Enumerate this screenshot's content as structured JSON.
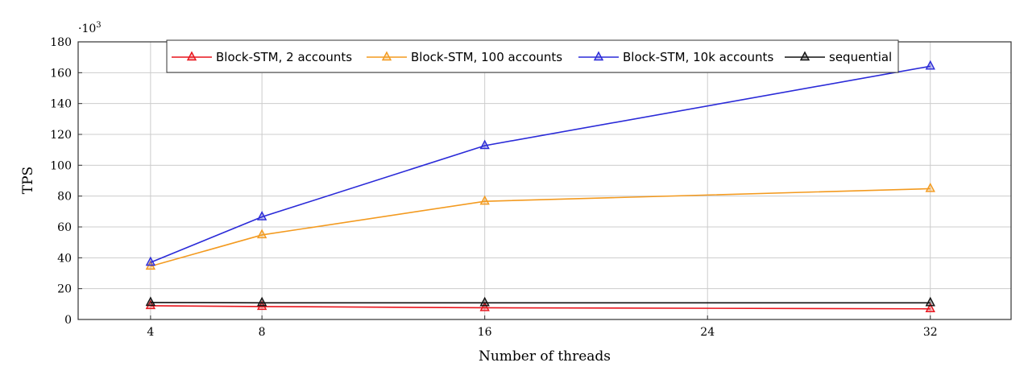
{
  "chart_data": {
    "type": "line",
    "title": "",
    "xlabel": "Number of threads",
    "ylabel": "TPS",
    "y_multiplier_label": "·10",
    "y_multiplier_exponent": "3",
    "x": [
      4,
      8,
      16,
      32
    ],
    "x_ticks": [
      "4",
      "8",
      "16",
      "24",
      "32"
    ],
    "y_ticks": [
      "0",
      "20",
      "40",
      "60",
      "80",
      "100",
      "120",
      "140",
      "160",
      "180"
    ],
    "xlim": [
      1.4,
      34.9
    ],
    "ylim": [
      0,
      180
    ],
    "grid": true,
    "legend_position": "top",
    "marker": "triangle",
    "series": [
      {
        "name": "Block-STM, 2 accounts",
        "color": "#e8141c",
        "values": [
          8.9,
          8.4,
          7.6,
          6.9
        ]
      },
      {
        "name": "Block-STM, 100 accounts",
        "color": "#f39a1f",
        "values": [
          34.5,
          54.8,
          76.6,
          84.8
        ]
      },
      {
        "name": "Block-STM, 10k accounts",
        "color": "#2a2ad8",
        "values": [
          37,
          66.5,
          112.7,
          164.2
        ]
      },
      {
        "name": "sequential",
        "color": "#111111",
        "values": [
          11,
          10.8,
          10.8,
          10.8
        ]
      }
    ]
  }
}
